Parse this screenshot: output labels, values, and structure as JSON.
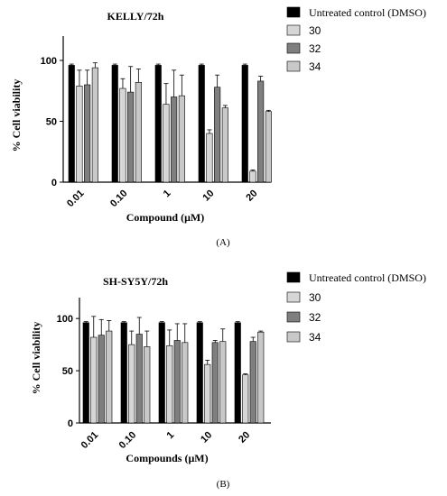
{
  "colors": {
    "control": "#000000",
    "c30": "#d6d6d6",
    "c32": "#7f7f7f",
    "c34": "#c8c8c8",
    "axis": "#000000"
  },
  "chart_data": [
    {
      "type": "bar",
      "title": "KELLY/72h",
      "caption": "(A)",
      "xlabel": "Compound (μM)",
      "ylabel": "% Cell viability",
      "ylim": [
        0,
        120
      ],
      "yticks": [
        0,
        50,
        100
      ],
      "categories": [
        "0.01",
        "0.10",
        "1",
        "10",
        "20"
      ],
      "legend_position": "right",
      "series": [
        {
          "name": "Untreated control (DMSO)",
          "values": [
            96,
            96,
            96,
            96,
            96
          ],
          "errors": [
            1,
            1,
            1,
            1,
            1
          ],
          "color_key": "control"
        },
        {
          "name": "30",
          "values": [
            79,
            77,
            64,
            40,
            9
          ],
          "errors": [
            13,
            8,
            17,
            3,
            1
          ],
          "color_key": "c30"
        },
        {
          "name": "32",
          "values": [
            80,
            74,
            70,
            78,
            83
          ],
          "errors": [
            12,
            21,
            22,
            10,
            4
          ],
          "color_key": "c32"
        },
        {
          "name": "34",
          "values": [
            94,
            82,
            71,
            61,
            58
          ],
          "errors": [
            4,
            11,
            17,
            2,
            1
          ],
          "color_key": "c34"
        }
      ]
    },
    {
      "type": "bar",
      "title": "SH-SY5Y/72h",
      "caption": "(B)",
      "xlabel": "Compounds (μM)",
      "ylabel": "% Cell viability",
      "ylim": [
        0,
        120
      ],
      "yticks": [
        0,
        50,
        100
      ],
      "categories": [
        "0.01",
        "0.10",
        "1",
        "10",
        "20"
      ],
      "legend_position": "right",
      "series": [
        {
          "name": "Untreated control (DMSO)",
          "values": [
            96,
            96,
            96,
            96,
            96
          ],
          "errors": [
            1,
            1,
            1,
            1,
            1
          ],
          "color_key": "control"
        },
        {
          "name": "30",
          "values": [
            82,
            75,
            74,
            56,
            46
          ],
          "errors": [
            20,
            13,
            15,
            4,
            1
          ],
          "color_key": "c30"
        },
        {
          "name": "32",
          "values": [
            84,
            85,
            79,
            77,
            78
          ],
          "errors": [
            15,
            16,
            16,
            2,
            4
          ],
          "color_key": "c32"
        },
        {
          "name": "34",
          "values": [
            88,
            73,
            77,
            78,
            87
          ],
          "errors": [
            10,
            15,
            18,
            12,
            1
          ],
          "color_key": "c34"
        }
      ]
    }
  ]
}
